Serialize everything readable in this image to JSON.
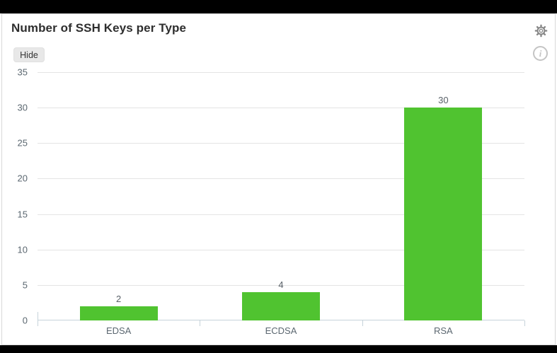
{
  "header": {
    "title": "Number of SSH Keys per Type",
    "hide_button": "Hide"
  },
  "icons": {
    "settings": "gear-icon",
    "info": "info-icon",
    "info_glyph": "i"
  },
  "colors": {
    "bar": "#50c330",
    "grid": "#e4e4e4",
    "axis": "#c6d3da",
    "tick_label": "#5b6770",
    "value_label": "#596168",
    "title": "#2e2e2e",
    "frame": "#000000",
    "card_border": "#d9d9d9",
    "icon_gray": "#878787",
    "icon_light": "#c4c4c4"
  },
  "chart_data": {
    "type": "bar",
    "title": "Number of SSH Keys per Type",
    "categories": [
      "EDSA",
      "ECDSA",
      "RSA"
    ],
    "values": [
      2,
      4,
      30
    ],
    "xlabel": "",
    "ylabel": "",
    "ylim": [
      0,
      35
    ],
    "ytick_step": 5,
    "grid": true,
    "legend": false,
    "bar_color": "#50c330",
    "value_labels_shown": true
  }
}
